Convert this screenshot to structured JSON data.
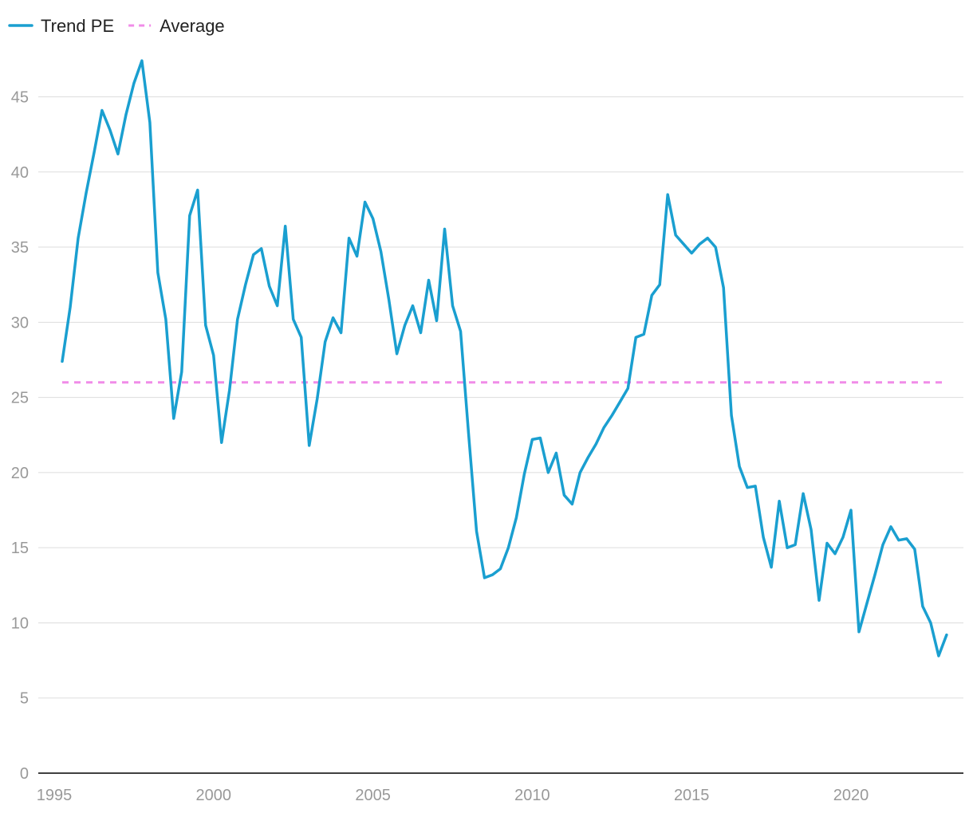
{
  "chart_data": {
    "type": "line",
    "title": "",
    "xlabel": "",
    "ylabel": "",
    "xlim": [
      1995,
      2023.5
    ],
    "ylim": [
      0,
      48
    ],
    "x_ticks": [
      1995,
      2000,
      2005,
      2010,
      2015,
      2020
    ],
    "x_tick_labels": [
      "1995",
      "2000",
      "2005",
      "2010",
      "2015",
      "2020"
    ],
    "y_ticks": [
      0,
      5,
      10,
      15,
      20,
      25,
      30,
      35,
      40,
      45
    ],
    "y_tick_labels": [
      "0",
      "5",
      "10",
      "15",
      "20",
      "25",
      "30",
      "35",
      "40",
      "45"
    ],
    "grid": true,
    "legend_position": "top-left",
    "series": [
      {
        "name": "Trend PE",
        "color": "#1a9fd0",
        "style": "solid",
        "x": [
          1995.25,
          1995.5,
          1995.75,
          1996.0,
          1996.25,
          1996.5,
          1996.75,
          1997.0,
          1997.25,
          1997.5,
          1997.75,
          1998.0,
          1998.25,
          1998.5,
          1998.75,
          1999.0,
          1999.25,
          1999.5,
          1999.75,
          2000.0,
          2000.25,
          2000.5,
          2000.75,
          2001.0,
          2001.25,
          2001.5,
          2001.75,
          2002.0,
          2002.25,
          2002.5,
          2002.75,
          2003.0,
          2003.25,
          2003.5,
          2003.75,
          2004.0,
          2004.25,
          2004.5,
          2004.75,
          2005.0,
          2005.25,
          2005.5,
          2005.75,
          2006.0,
          2006.25,
          2006.5,
          2006.75,
          2007.0,
          2007.25,
          2007.5,
          2007.75,
          2008.0,
          2008.25,
          2008.5,
          2008.75,
          2009.0,
          2009.25,
          2009.5,
          2009.75,
          2010.0,
          2010.25,
          2010.5,
          2010.75,
          2011.0,
          2011.25,
          2011.5,
          2011.75,
          2012.0,
          2012.25,
          2012.5,
          2012.75,
          2013.0,
          2013.25,
          2013.5,
          2013.75,
          2014.0,
          2014.25,
          2014.5,
          2014.75,
          2015.0,
          2015.25,
          2015.5,
          2015.75,
          2016.0,
          2016.25,
          2016.5,
          2016.75,
          2017.0,
          2017.25,
          2017.5,
          2017.75,
          2018.0,
          2018.25,
          2018.5,
          2018.75,
          2019.0,
          2019.25,
          2019.5,
          2019.75,
          2020.0,
          2020.25,
          2020.5,
          2020.75,
          2021.0,
          2021.25,
          2021.5,
          2021.75,
          2022.0,
          2022.25,
          2022.5,
          2022.75,
          2023.0
        ],
        "values": [
          27.4,
          31.0,
          35.6,
          38.6,
          41.3,
          44.1,
          42.8,
          41.2,
          43.8,
          45.9,
          47.4,
          43.3,
          33.3,
          30.2,
          23.6,
          26.7,
          37.1,
          38.8,
          29.8,
          27.8,
          22.0,
          25.5,
          30.2,
          32.5,
          34.5,
          34.9,
          32.4,
          31.1,
          36.4,
          30.2,
          29.0,
          21.8,
          24.9,
          28.7,
          30.3,
          29.3,
          35.6,
          34.4,
          38.0,
          36.9,
          34.7,
          31.5,
          27.9,
          29.8,
          31.1,
          29.3,
          32.8,
          30.1,
          36.2,
          31.1,
          29.4,
          22.6,
          16.1,
          13.0,
          13.2,
          13.6,
          15.0,
          17.0,
          19.9,
          22.2,
          22.3,
          20.0,
          21.3,
          18.5,
          17.9,
          20.0,
          21.0,
          21.9,
          23.0,
          23.8,
          24.7,
          25.6,
          29.0,
          29.2,
          31.8,
          32.5,
          38.5,
          35.8,
          35.2,
          34.6,
          35.2,
          35.6,
          35.0,
          32.3,
          23.8,
          20.4,
          19.0,
          19.1,
          15.7,
          13.7,
          18.1,
          15.0,
          15.2,
          18.6,
          16.2,
          11.5,
          15.3,
          14.6,
          15.7,
          17.5,
          9.4,
          11.3,
          13.2,
          15.2,
          16.4,
          15.5,
          15.6,
          14.9,
          11.1,
          10.0,
          7.8,
          9.2
        ]
      },
      {
        "name": "Average",
        "color": "#f08ce8",
        "style": "dashed",
        "x": [
          1995.25,
          2023.0
        ],
        "values": [
          26.0,
          26.0
        ]
      }
    ]
  }
}
